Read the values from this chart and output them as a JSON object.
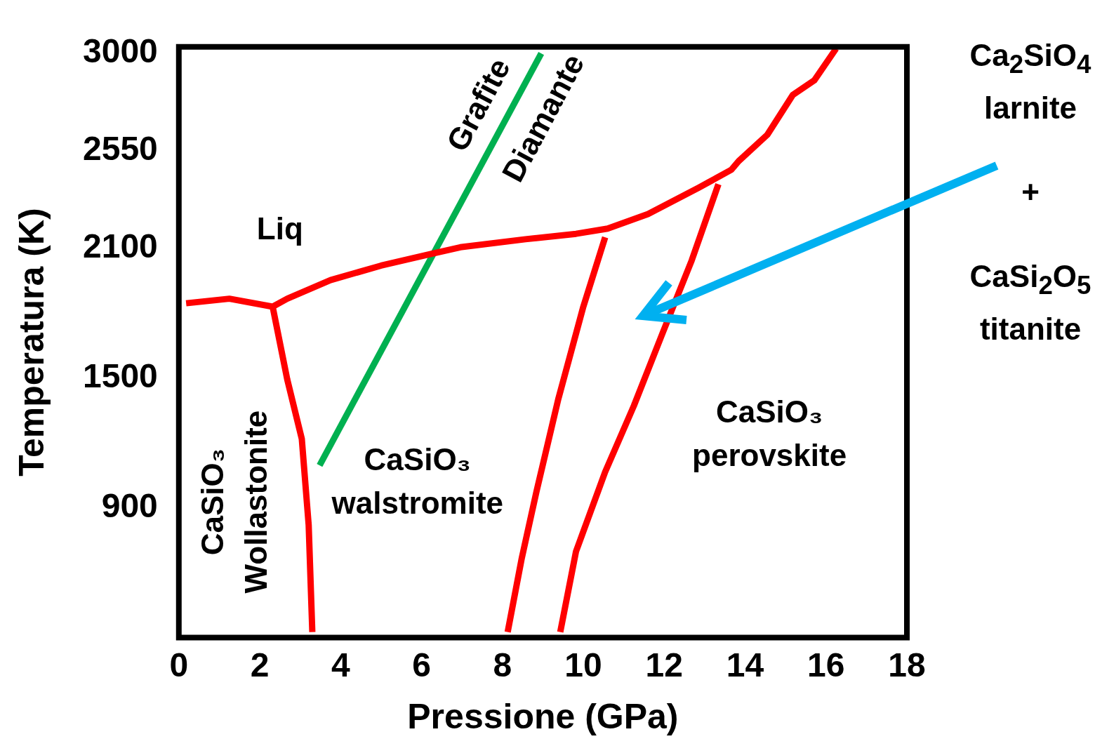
{
  "chart_data": {
    "type": "line",
    "xlabel": "Pressione (GPa)",
    "ylabel": "Temperatura (K)",
    "xlim": [
      0,
      18
    ],
    "ylim": [
      300,
      3030
    ],
    "xticks": [
      0,
      2,
      4,
      6,
      8,
      10,
      12,
      14,
      16,
      18
    ],
    "yticks": [
      900,
      1500,
      2100,
      2550,
      3000
    ],
    "grid": false,
    "legend": false,
    "marker": "none",
    "line_style": "solid",
    "series": [
      {
        "color": "#ff0000",
        "x": [
          0.18,
          1.25,
          2.32,
          2.68,
          3.75,
          5.0,
          6.25,
          6.96,
          8.57,
          9.82,
          10.6,
          11.6,
          12.86,
          13.66,
          13.84,
          14.55,
          15.18,
          15.71,
          16.25
        ],
        "values": [
          1845,
          1866,
          1829,
          1866,
          1952,
          2019,
          2074,
          2104,
          2141,
          2166,
          2190,
          2257,
          2380,
          2462,
          2502,
          2624,
          2808,
          2875,
          3022
        ]
      },
      {
        "color": "#ff0000",
        "x": [
          2.32,
          2.68,
          3.04,
          3.21,
          3.3
        ],
        "values": [
          1829,
          1493,
          1218,
          820,
          325
        ]
      },
      {
        "color": "#ff0000",
        "x": [
          10.54,
          10.0,
          9.38,
          8.84,
          8.48,
          8.13
        ],
        "values": [
          2150,
          1829,
          1401,
          973,
          668,
          325
        ]
      },
      {
        "color": "#ff0000",
        "x": [
          13.34,
          12.68,
          11.96,
          11.25,
          10.54,
          9.82,
          9.43
        ],
        "values": [
          2395,
          2043,
          1707,
          1371,
          1065,
          698,
          325
        ]
      },
      {
        "color": "#00b050",
        "x": [
          3.48,
          8.96
        ],
        "values": [
          1096,
          3000
        ]
      }
    ],
    "annotations": [
      "Liq",
      "CaSiO₃\nWollastonite",
      "Grafite",
      "Diamante",
      "CaSiO₃\nwalstromite",
      "CaSiO₃\nperovskite",
      "Ca$_{2}$SiO$_{4}$\nlarnite",
      "+",
      "CaSi$_{2}$O$_{5}$\ntitanite"
    ]
  }
}
